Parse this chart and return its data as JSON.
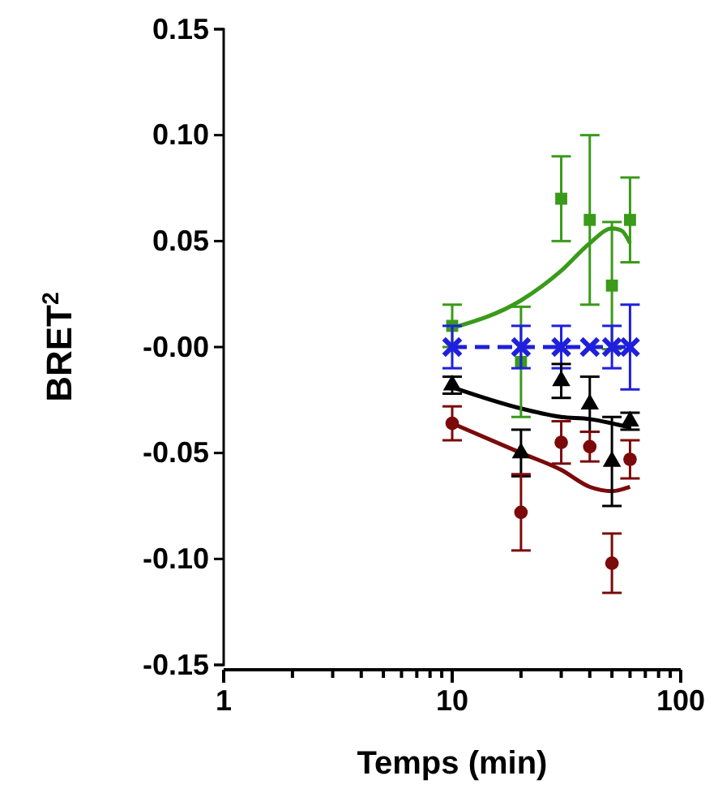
{
  "chart_data": {
    "type": "scatter",
    "xlabel": "Temps (min)",
    "ylabel": "BRET$^{2}$",
    "log": "x",
    "grid": false,
    "xlim": [
      1,
      100
    ],
    "xticks": [
      1,
      {
        "value": 2,
        "label": null
      },
      {
        "value": 3,
        "label": null
      },
      {
        "value": 4,
        "label": null
      },
      {
        "value": 5,
        "label": null
      },
      {
        "value": 6,
        "label": null
      },
      {
        "value": 7,
        "label": null
      },
      {
        "value": 8,
        "label": null
      },
      {
        "value": 9,
        "label": null
      },
      10,
      {
        "value": 20,
        "label": null
      },
      {
        "value": 30,
        "label": null
      },
      {
        "value": 40,
        "label": null
      },
      {
        "value": 50,
        "label": null
      },
      {
        "value": 60,
        "label": null
      },
      {
        "value": 70,
        "label": null
      },
      {
        "value": 80,
        "label": null
      },
      {
        "value": 90,
        "label": null
      },
      100
    ],
    "ylim": [
      -0.15,
      0.15
    ],
    "yticks": [
      {
        "value": -0.15,
        "label": "-0.15"
      },
      {
        "value": -0.1,
        "label": "-0.10"
      },
      {
        "value": -0.05,
        "label": "-0.05"
      },
      {
        "value": 0,
        "label": "-0.00"
      },
      {
        "value": 0.05,
        "label": "0.05"
      },
      {
        "value": 0.1,
        "label": "0.10"
      },
      {
        "value": 0.15,
        "label": "0.15"
      }
    ],
    "series": [
      {
        "type": "line",
        "color": "#3a9a1a",
        "marker": "none",
        "line_style": "solid",
        "x": [
          10,
          20,
          30,
          40,
          50,
          55,
          60
        ],
        "values": [
          0.009,
          0.022,
          0.036,
          0.049,
          0.056,
          0.055,
          0.049
        ]
      },
      {
        "type": "line",
        "color": "#000000",
        "marker": "none",
        "line_style": "solid",
        "x": [
          10,
          20,
          30,
          40,
          50,
          60
        ],
        "values": [
          -0.019,
          -0.029,
          -0.033,
          -0.034,
          -0.036,
          -0.038
        ]
      },
      {
        "type": "line",
        "color": "#7b0a0a",
        "marker": "none",
        "line_style": "solid",
        "x": [
          10,
          20,
          30,
          40,
          50,
          60
        ],
        "values": [
          -0.036,
          -0.05,
          -0.058,
          -0.066,
          -0.068,
          -0.066
        ]
      },
      {
        "color": "#3a9a1a",
        "marker": "square",
        "x": [
          10,
          20,
          30,
          40,
          50,
          60
        ],
        "values": [
          0.01,
          -0.007,
          0.07,
          0.06,
          0.029,
          0.06
        ],
        "errors": [
          0.01,
          0.026,
          0.02,
          0.04,
          0.03,
          0.02
        ]
      },
      {
        "type": "line",
        "color": "#1f1fdd",
        "marker": "cross",
        "line_style": "dashed",
        "x": [
          10,
          20,
          30,
          40,
          50,
          60
        ],
        "values": [
          0,
          0,
          0,
          0,
          0,
          0
        ],
        "errors": [
          0.01,
          0.01,
          0.01,
          null,
          0.01,
          0.02
        ]
      },
      {
        "color": "#000000",
        "marker": "triangle",
        "x": [
          10,
          20,
          30,
          40,
          50,
          60
        ],
        "values": [
          -0.018,
          -0.05,
          -0.016,
          -0.027,
          -0.054,
          -0.035
        ],
        "errors": [
          0.004,
          0.011,
          0.008,
          0.013,
          0.021,
          0.004
        ]
      },
      {
        "color": "#7b0a0a",
        "marker": "circle",
        "x": [
          10,
          20,
          30,
          40,
          50,
          60
        ],
        "values": [
          -0.036,
          -0.078,
          -0.045,
          -0.047,
          -0.102,
          -0.053
        ],
        "errors": [
          0.008,
          0.018,
          0.01,
          0.007,
          0.014,
          0.009
        ]
      }
    ]
  }
}
